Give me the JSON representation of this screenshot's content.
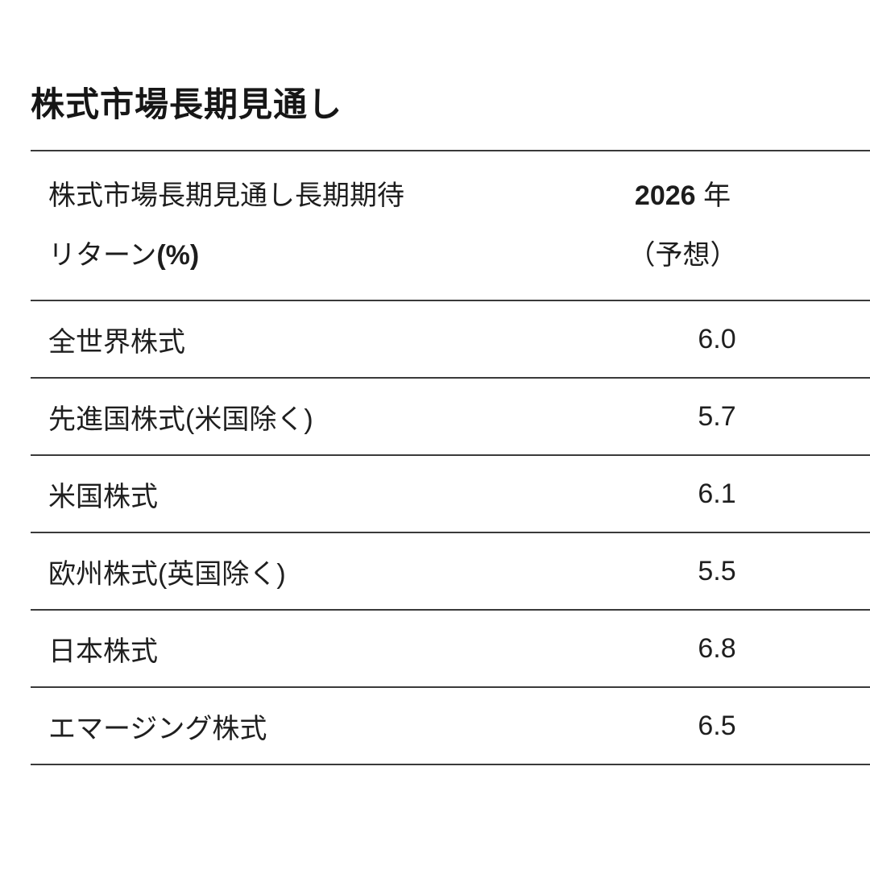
{
  "page": {
    "title": "株式市場長期見通し"
  },
  "table": {
    "header": {
      "col1_line1": "株式市場長期見通し長期期待",
      "col1_line2_text": "リターン",
      "col1_line2_bold": "(%)",
      "col2_year": "2026",
      "col2_year_suffix": "年",
      "col2_line2": "（予想）"
    },
    "rows": [
      {
        "label": "全世界株式",
        "value": "6.0"
      },
      {
        "label": "先進国株式(米国除く)",
        "value": "5.7"
      },
      {
        "label": "米国株式",
        "value": "6.1"
      },
      {
        "label": "欧州株式(英国除く)",
        "value": "5.5"
      },
      {
        "label": "日本株式",
        "value": "6.8"
      },
      {
        "label": "エマージング株式",
        "value": "6.5"
      }
    ]
  },
  "chart_data": {
    "type": "table",
    "title": "株式市場長期見通し",
    "columns": [
      "株式市場長期見通し長期期待リターン(%)",
      "2026 年（予想）"
    ],
    "rows": [
      [
        "全世界株式",
        6.0
      ],
      [
        "先進国株式(米国除く)",
        5.7
      ],
      [
        "米国株式",
        6.1
      ],
      [
        "欧州株式(英国除く)",
        5.5
      ],
      [
        "日本株式",
        6.8
      ],
      [
        "エマージング株式",
        6.5
      ]
    ]
  },
  "colors": {
    "background": "#ffffff",
    "text": "#1d1d1d",
    "rule": "#3a3a3a"
  }
}
